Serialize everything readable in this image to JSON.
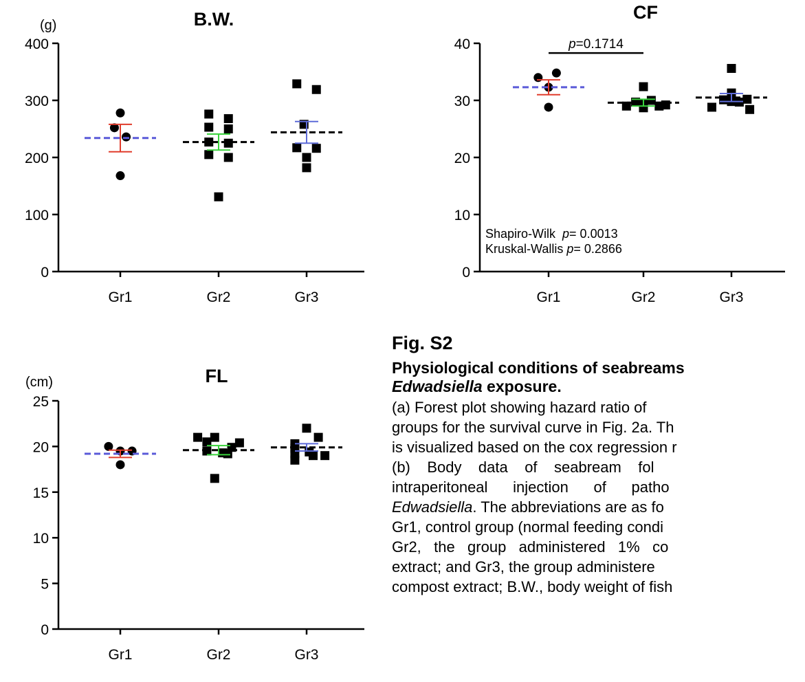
{
  "colors": {
    "gr1_mean": "#5a5ad8",
    "gr1_err": "#e03c2c",
    "gr2_err": "#39d23c",
    "gr3_err": "#5d6bd8",
    "black": "#000000"
  },
  "chart_data": [
    {
      "id": "bw",
      "type": "scatter",
      "title": "B.W.",
      "unit": "(g)",
      "xlabel": "",
      "ylabel": "",
      "categories": [
        "Gr1",
        "Gr2",
        "Gr3"
      ],
      "ylim": [
        0,
        400
      ],
      "yticks": [
        0,
        100,
        200,
        300,
        400
      ],
      "series": [
        {
          "group": "Gr1",
          "marker": "circle",
          "mean": 234,
          "err": [
            210,
            258
          ],
          "points": [
            [
              -0.09,
              252
            ],
            [
              0.0,
              278
            ],
            [
              0.09,
              236
            ],
            [
              0.0,
              168
            ]
          ]
        },
        {
          "group": "Gr2",
          "marker": "square",
          "mean": 227,
          "err": [
            213,
            241
          ],
          "points": [
            [
              -0.15,
              276
            ],
            [
              0.15,
              268
            ],
            [
              -0.15,
              253
            ],
            [
              0.15,
              250
            ],
            [
              -0.15,
              227
            ],
            [
              0.15,
              225
            ],
            [
              -0.15,
              205
            ],
            [
              0.15,
              200
            ],
            [
              0.0,
              131
            ]
          ]
        },
        {
          "group": "Gr3",
          "marker": "square",
          "mean": 244,
          "err": [
            225,
            263
          ],
          "points": [
            [
              -0.15,
              329
            ],
            [
              0.15,
              319
            ],
            [
              -0.04,
              258
            ],
            [
              -0.15,
              217
            ],
            [
              0.15,
              216
            ],
            [
              0.0,
              200
            ],
            [
              0.0,
              182
            ]
          ]
        }
      ]
    },
    {
      "id": "cf",
      "type": "scatter",
      "title": "CF",
      "unit": "",
      "xlabel": "",
      "ylabel": "",
      "categories": [
        "Gr1",
        "Gr2",
        "Gr3"
      ],
      "ylim": [
        0,
        40
      ],
      "yticks": [
        0,
        10,
        20,
        30,
        40
      ],
      "significance": {
        "from": "Gr1",
        "to": "Gr2",
        "y": 38.3,
        "p_label": "p",
        "p_value": "=0.1714"
      },
      "stats": [
        {
          "label": "Shapiro-Wilk  ",
          "p": "p",
          "value": "= 0.0013"
        },
        {
          "label": "Kruskal-Wallis ",
          "p": "p",
          "value": "= 0.2866"
        }
      ],
      "series": [
        {
          "group": "Gr1",
          "marker": "circle",
          "mean": 32.3,
          "err": [
            31.0,
            33.6
          ],
          "points": [
            [
              -0.16,
              34.0
            ],
            [
              0.12,
              34.8
            ],
            [
              0.0,
              32.3
            ],
            [
              0.0,
              28.8
            ]
          ]
        },
        {
          "group": "Gr2",
          "marker": "square",
          "mean": 29.6,
          "err": [
            29.0,
            30.2
          ],
          "points": [
            [
              -0.26,
              29.0
            ],
            [
              -0.12,
              29.7
            ],
            [
              0.0,
              29.4
            ],
            [
              0.0,
              32.4
            ],
            [
              0.12,
              30.0
            ],
            [
              0.24,
              29.0
            ],
            [
              0.0,
              28.7
            ],
            [
              0.34,
              29.2
            ]
          ]
        },
        {
          "group": "Gr3",
          "marker": "square",
          "mean": 30.5,
          "err": [
            29.8,
            31.2
          ],
          "points": [
            [
              -0.3,
              28.8
            ],
            [
              -0.12,
              30.1
            ],
            [
              0.0,
              35.6
            ],
            [
              0.0,
              31.3
            ],
            [
              0.12,
              29.7
            ],
            [
              0.24,
              30.2
            ],
            [
              0.0,
              29.8
            ],
            [
              0.28,
              28.4
            ]
          ]
        }
      ]
    },
    {
      "id": "fl",
      "type": "scatter",
      "title": "FL",
      "unit": "(cm)",
      "xlabel": "",
      "ylabel": "",
      "categories": [
        "Gr1",
        "Gr2",
        "Gr3"
      ],
      "ylim": [
        0,
        25
      ],
      "yticks": [
        0,
        5,
        10,
        15,
        20,
        25
      ],
      "series": [
        {
          "group": "Gr1",
          "marker": "circle",
          "mean": 19.2,
          "err": [
            18.8,
            19.6
          ],
          "points": [
            [
              -0.18,
              20.0
            ],
            [
              0.0,
              19.5
            ],
            [
              0.18,
              19.5
            ],
            [
              0.0,
              18.0
            ]
          ]
        },
        {
          "group": "Gr2",
          "marker": "square",
          "mean": 19.6,
          "err": [
            19.1,
            20.1
          ],
          "points": [
            [
              -0.32,
              21.0
            ],
            [
              -0.18,
              20.5
            ],
            [
              -0.06,
              21.0
            ],
            [
              0.2,
              19.9
            ],
            [
              0.32,
              20.4
            ],
            [
              -0.18,
              19.5
            ],
            [
              0.06,
              19.3
            ],
            [
              0.14,
              19.2
            ],
            [
              -0.06,
              16.5
            ]
          ]
        },
        {
          "group": "Gr3",
          "marker": "square",
          "mean": 19.9,
          "err": [
            19.5,
            20.3
          ],
          "points": [
            [
              -0.18,
              20.3
            ],
            [
              -0.18,
              19.8
            ],
            [
              0.0,
              22.0
            ],
            [
              0.18,
              21.0
            ],
            [
              -0.18,
              19.2
            ],
            [
              -0.18,
              18.5
            ],
            [
              0.04,
              19.4
            ],
            [
              0.1,
              19.0
            ],
            [
              0.28,
              19.0
            ]
          ]
        }
      ]
    }
  ],
  "caption": {
    "fig": "Fig. S2",
    "title_line1": "Physiological conditions of seabreams",
    "title_line2_italic": "Edwadsiella",
    "title_line2_rest": " exposure.",
    "lines": [
      "(a) Forest plot showing hazard ratio of",
      "groups for the survival curve in Fig. 2a. Th",
      "is visualized based on the cox regression r",
      "(b)    Body    data    of    seabream    fol",
      "intraperitoneal      injection      of      patho"
    ],
    "line_italic_word": "Edwadsiella",
    "line_italic_rest": ". The abbreviations are as fo",
    "lines_after": [
      "Gr1, control group (normal feeding condi",
      "Gr2,   the   group   administered   1%   co",
      "extract; and Gr3, the group administere",
      "compost extract; B.W., body weight of fish"
    ]
  }
}
